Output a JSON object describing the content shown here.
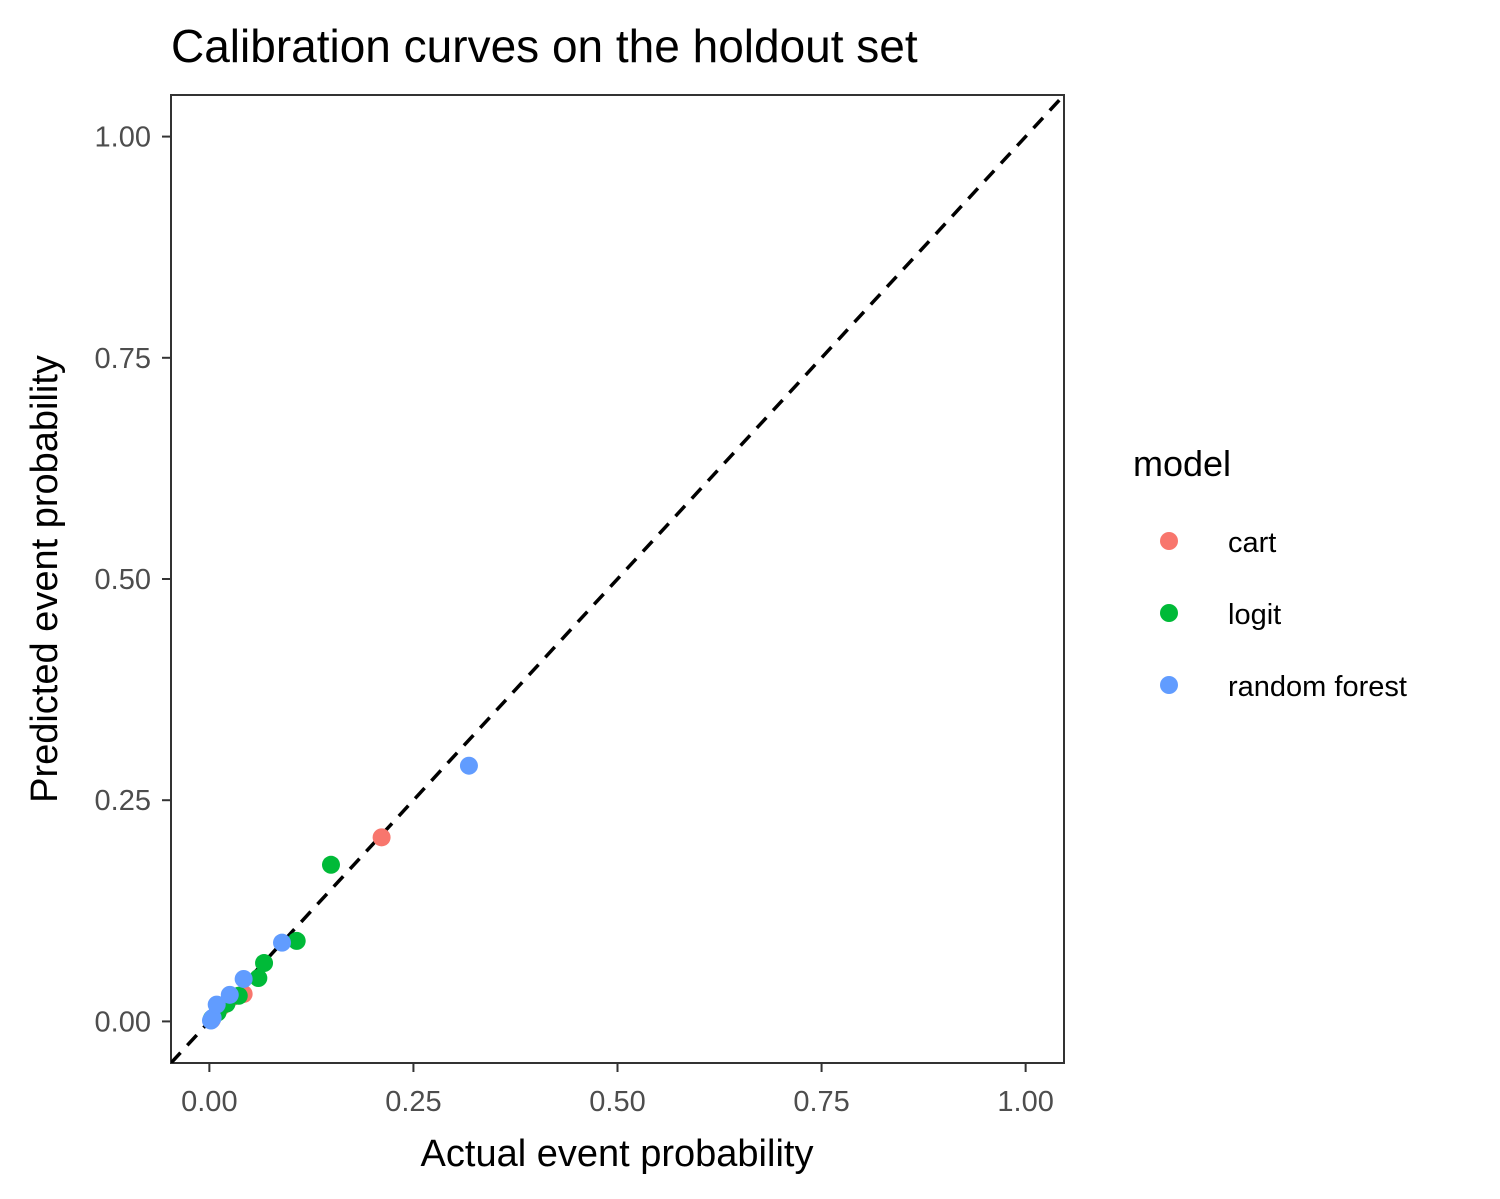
{
  "chart_data": {
    "type": "scatter",
    "title": "Calibration curves on the holdout set",
    "xlabel": "Actual event probability",
    "ylabel": "Predicted event probability",
    "xlim": [
      -0.047,
      1.047
    ],
    "ylim": [
      -0.047,
      1.047
    ],
    "xticks": [
      0.0,
      0.25,
      0.5,
      0.75,
      1.0
    ],
    "yticks": [
      0.0,
      0.25,
      0.5,
      0.75,
      1.0
    ],
    "xtick_labels": [
      "0.00",
      "0.25",
      "0.50",
      "0.75",
      "1.00"
    ],
    "ytick_labels": [
      "0.00",
      "0.25",
      "0.50",
      "0.75",
      "1.00"
    ],
    "reference_line": {
      "type": "identity",
      "style": "dashed",
      "color": "#000000"
    },
    "grid": false,
    "legend": {
      "title": "model",
      "position": "right"
    },
    "series": [
      {
        "name": "cart",
        "color": "#F8766D",
        "points": [
          {
            "x": 0.003,
            "y": 0.002
          },
          {
            "x": 0.014,
            "y": 0.016
          },
          {
            "x": 0.029,
            "y": 0.028
          },
          {
            "x": 0.042,
            "y": 0.031
          },
          {
            "x": 0.211,
            "y": 0.208
          }
        ]
      },
      {
        "name": "logit",
        "color": "#00BA38",
        "points": [
          {
            "x": 0.003,
            "y": 0.003
          },
          {
            "x": 0.01,
            "y": 0.01
          },
          {
            "x": 0.021,
            "y": 0.02
          },
          {
            "x": 0.036,
            "y": 0.029
          },
          {
            "x": 0.06,
            "y": 0.049
          },
          {
            "x": 0.067,
            "y": 0.066
          },
          {
            "x": 0.107,
            "y": 0.091
          },
          {
            "x": 0.149,
            "y": 0.177
          }
        ]
      },
      {
        "name": "random forest",
        "color": "#619CFF",
        "points": [
          {
            "x": 0.002,
            "y": 0.001
          },
          {
            "x": 0.004,
            "y": 0.004
          },
          {
            "x": 0.009,
            "y": 0.019
          },
          {
            "x": 0.025,
            "y": 0.03
          },
          {
            "x": 0.042,
            "y": 0.048
          },
          {
            "x": 0.089,
            "y": 0.089
          },
          {
            "x": 0.318,
            "y": 0.289
          }
        ]
      }
    ]
  }
}
